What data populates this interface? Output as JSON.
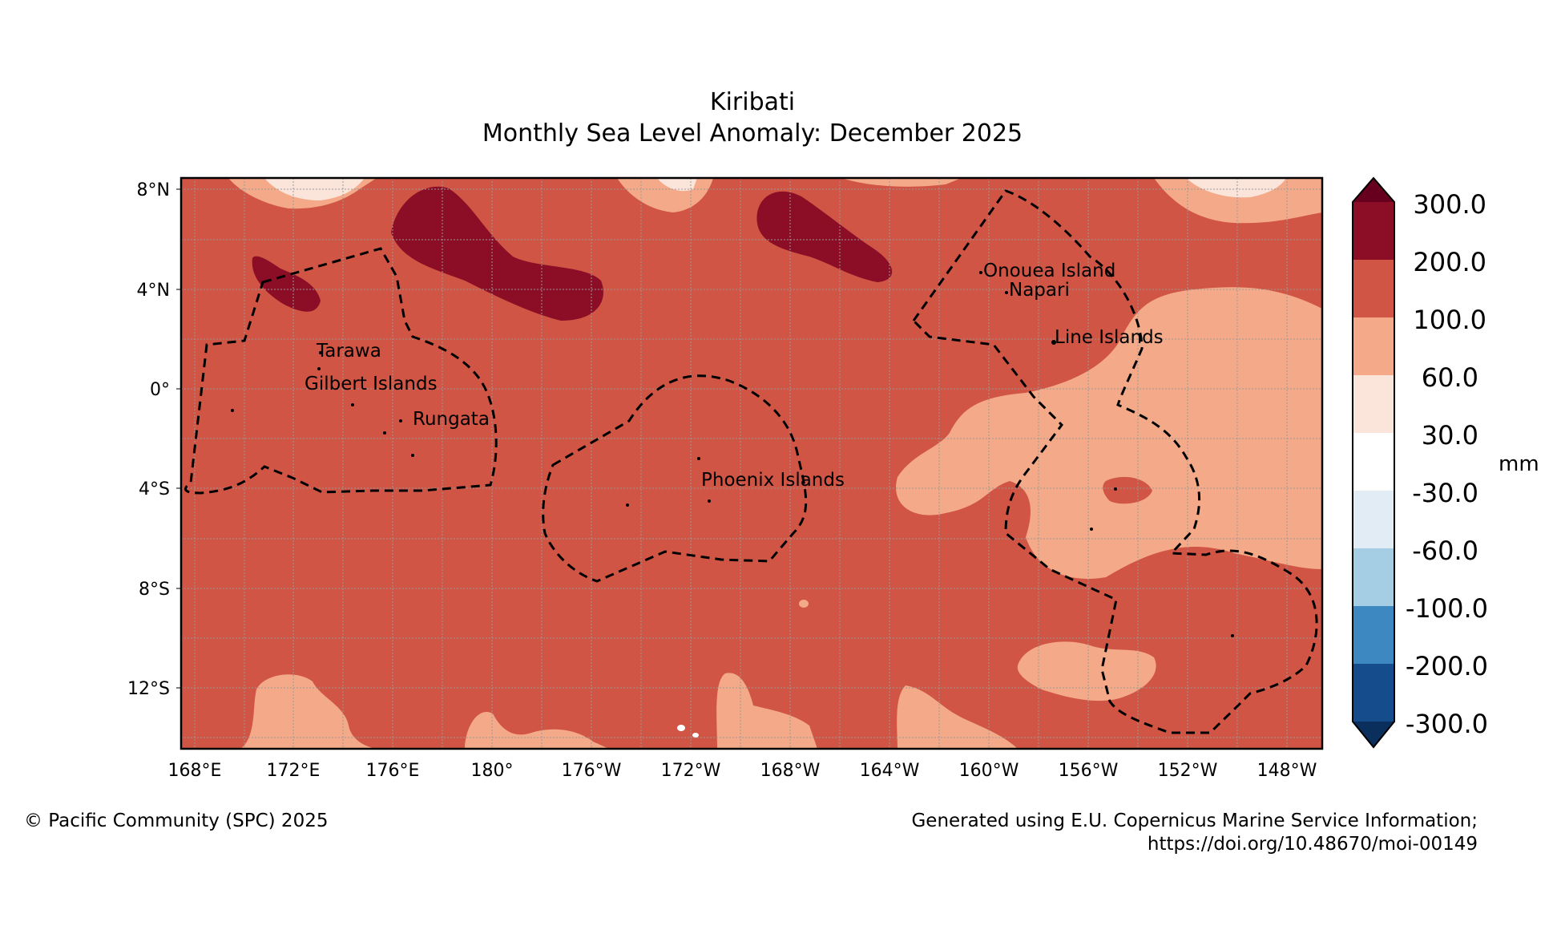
{
  "title": {
    "line1": "Kiribati",
    "line2": "Monthly Sea Level Anomaly: December 2025"
  },
  "map": {
    "lat_ticks": [
      "8°N",
      "4°N",
      "0°",
      "4°S",
      "8°S",
      "12°S"
    ],
    "lon_ticks": [
      "168°E",
      "172°E",
      "176°E",
      "180°",
      "176°W",
      "172°W",
      "168°W",
      "164°W",
      "160°W",
      "156°W",
      "152°W",
      "148°W"
    ],
    "places": [
      "Tarawa",
      "Gilbert Islands",
      "Rungata",
      "Phoenix Islands",
      "Onouea Island",
      "Napari",
      "Line Islands"
    ]
  },
  "colorbar": {
    "unit": "mm",
    "labels": [
      "300.0",
      "200.0",
      "100.0",
      "60.0",
      "30.0",
      "-30.0",
      "-60.0",
      "-100.0",
      "-200.0",
      "-300.0"
    ],
    "colors": [
      "#67001f",
      "#8b0d26",
      "#d05545",
      "#f4aa88",
      "#fbe5da",
      "#ffffff",
      "#e2ecf4",
      "#a5cde3",
      "#3d88c0",
      "#154d8c",
      "#0a2f5c"
    ]
  },
  "footer": {
    "left": "© Pacific Community (SPC) 2025",
    "right_line1": "Generated using E.U. Copernicus Marine Service Information;",
    "right_line2": "https://doi.org/10.48670/moi-00149"
  }
}
